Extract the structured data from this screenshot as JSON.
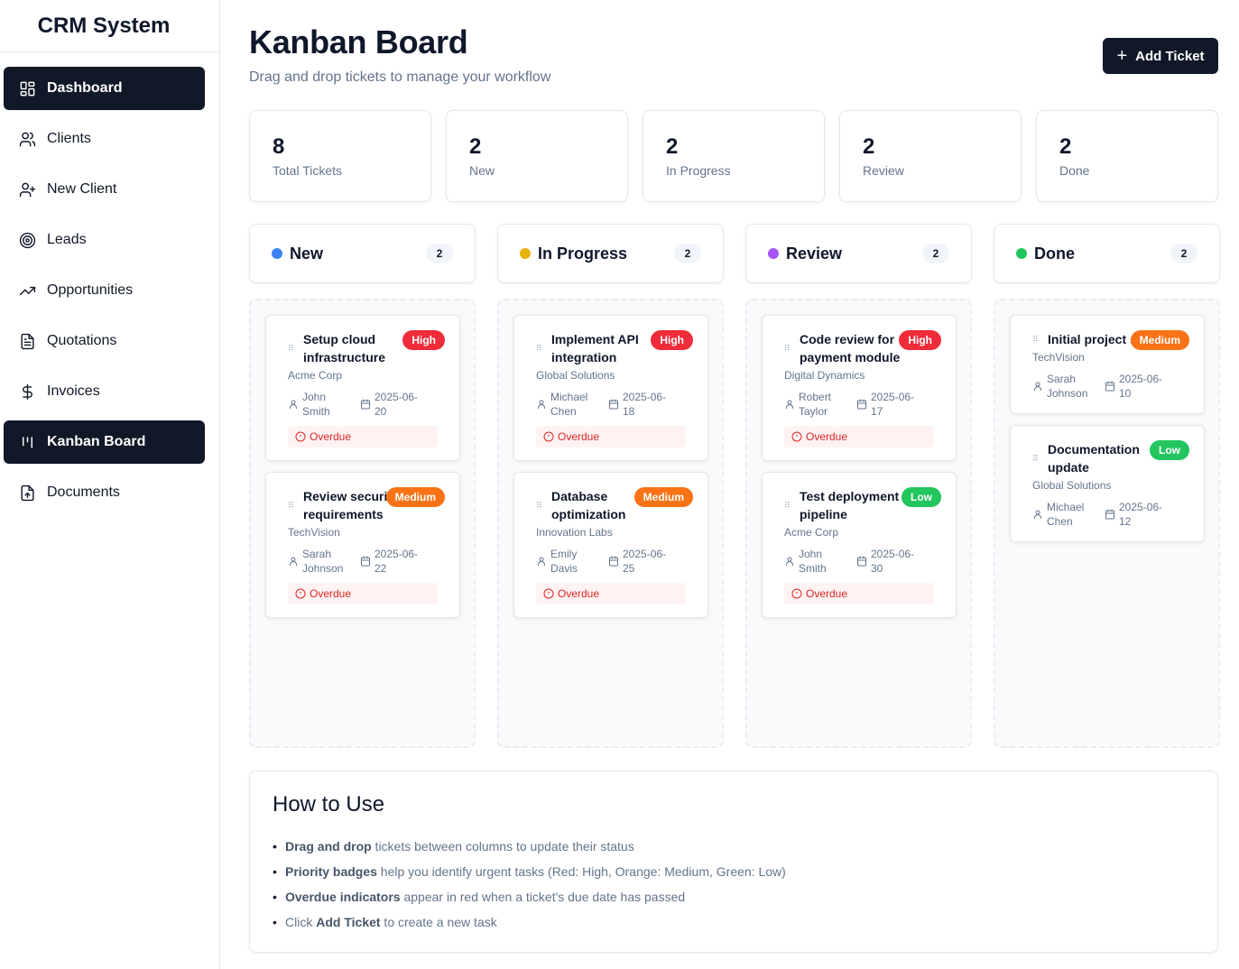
{
  "app": {
    "title": "CRM System"
  },
  "sidebar": {
    "items": [
      {
        "label": "Dashboard",
        "icon": "dashboard-icon",
        "active": true
      },
      {
        "label": "Clients",
        "icon": "users-icon",
        "active": false
      },
      {
        "label": "New Client",
        "icon": "user-plus-icon",
        "active": false
      },
      {
        "label": "Leads",
        "icon": "target-icon",
        "active": false
      },
      {
        "label": "Opportunities",
        "icon": "trending-up-icon",
        "active": false
      },
      {
        "label": "Quotations",
        "icon": "file-text-icon",
        "active": false
      },
      {
        "label": "Invoices",
        "icon": "dollar-icon",
        "active": false
      },
      {
        "label": "Kanban Board",
        "icon": "kanban-icon",
        "active": true
      },
      {
        "label": "Documents",
        "icon": "file-upload-icon",
        "active": false
      }
    ]
  },
  "header": {
    "title": "Kanban Board",
    "subtitle": "Drag and drop tickets to manage your workflow",
    "add_label": "Add Ticket"
  },
  "stats": [
    {
      "value": "8",
      "label": "Total Tickets"
    },
    {
      "value": "2",
      "label": "New"
    },
    {
      "value": "2",
      "label": "In Progress"
    },
    {
      "value": "2",
      "label": "Review"
    },
    {
      "value": "2",
      "label": "Done"
    }
  ],
  "columns": [
    {
      "title": "New",
      "count": "2",
      "color": "#3b82f6",
      "cards": [
        {
          "title": "Setup cloud infrastructure",
          "priority": "High",
          "client": "Acme Corp",
          "assignee": "John Smith",
          "date": "2025-06-20",
          "overdue": "Overdue"
        },
        {
          "title": "Review security requirements",
          "priority": "Medium",
          "client": "TechVision",
          "assignee": "Sarah Johnson",
          "date": "2025-06-22",
          "overdue": "Overdue"
        }
      ]
    },
    {
      "title": "In Progress",
      "count": "2",
      "color": "#eab308",
      "cards": [
        {
          "title": "Implement API integration",
          "priority": "High",
          "client": "Global Solutions",
          "assignee": "Michael Chen",
          "date": "2025-06-18",
          "overdue": "Overdue"
        },
        {
          "title": "Database optimization",
          "priority": "Medium",
          "client": "Innovation Labs",
          "assignee": "Emily Davis",
          "date": "2025-06-25",
          "overdue": "Overdue"
        }
      ]
    },
    {
      "title": "Review",
      "count": "2",
      "color": "#a855f7",
      "cards": [
        {
          "title": "Code review for payment module",
          "priority": "High",
          "client": "Digital Dynamics",
          "assignee": "Robert Taylor",
          "date": "2025-06-17",
          "overdue": "Overdue"
        },
        {
          "title": "Test deployment pipeline",
          "priority": "Low",
          "client": "Acme Corp",
          "assignee": "John Smith",
          "date": "2025-06-30",
          "overdue": "Overdue"
        }
      ]
    },
    {
      "title": "Done",
      "count": "2",
      "color": "#22c55e",
      "cards": [
        {
          "title": "Initial project setup",
          "priority": "Medium",
          "client": "TechVision",
          "assignee": "Sarah Johnson",
          "date": "2025-06-10",
          "overdue": null
        },
        {
          "title": "Documentation update",
          "priority": "Low",
          "client": "Global Solutions",
          "assignee": "Michael Chen",
          "date": "2025-06-12",
          "overdue": null
        }
      ]
    }
  ],
  "howto": {
    "title": "How to Use",
    "items": [
      {
        "bold": "Drag and drop",
        "text": " tickets between columns to update their status",
        "prefix": ""
      },
      {
        "bold": "Priority badges",
        "text": " help you identify urgent tasks (Red: High, Orange: Medium, Green: Low)",
        "prefix": ""
      },
      {
        "bold": "Overdue indicators",
        "text": " appear in red when a ticket's due date has passed",
        "prefix": ""
      },
      {
        "bold": "Add Ticket",
        "text": " to create a new task",
        "prefix": "Click "
      }
    ]
  }
}
